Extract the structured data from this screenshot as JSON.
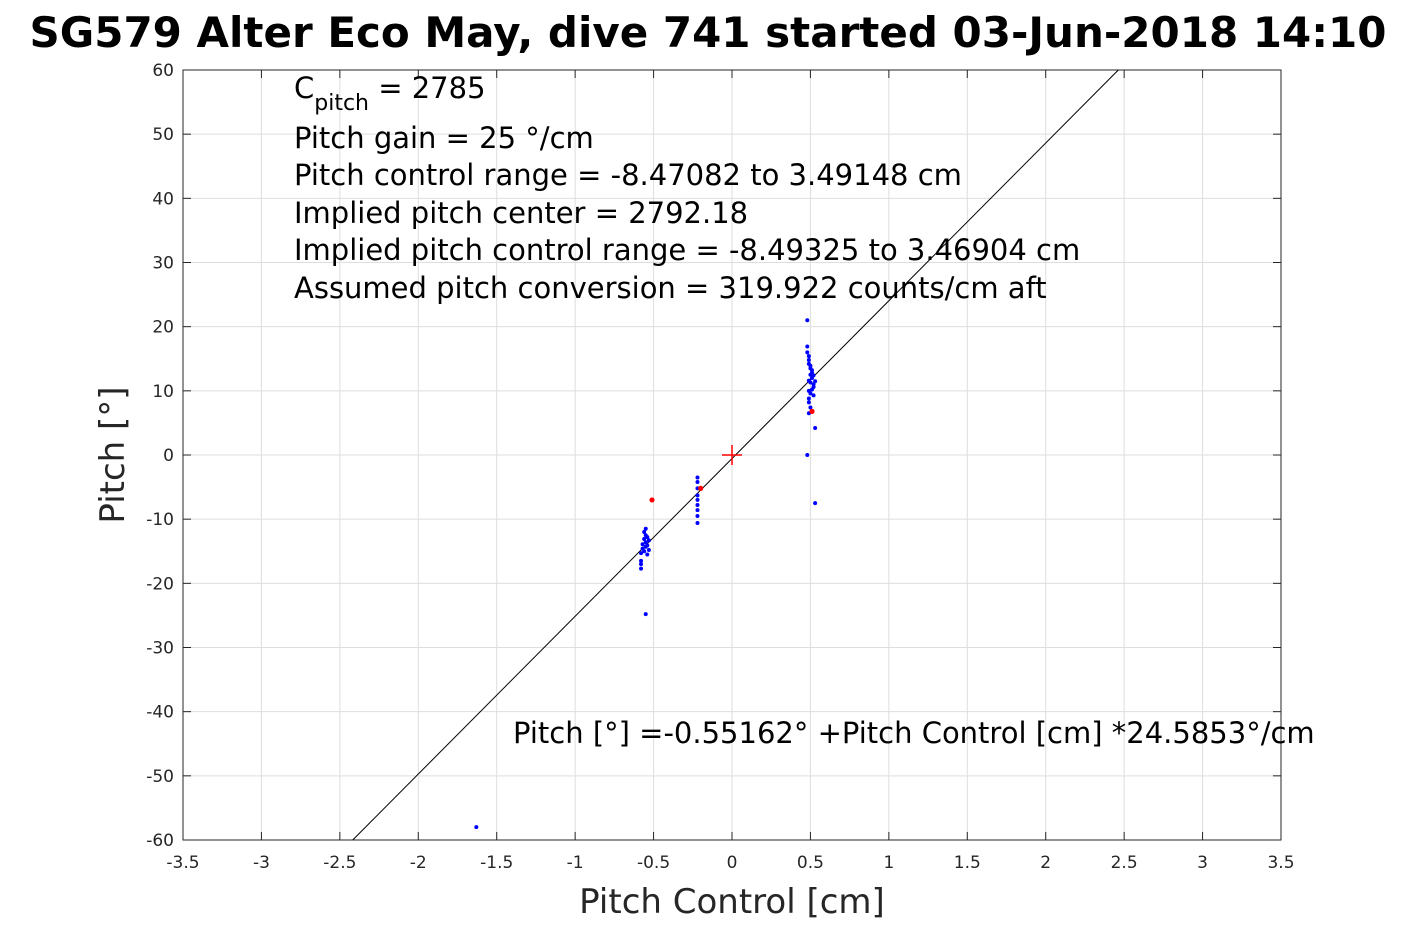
{
  "chart_data": {
    "type": "scatter",
    "title": "SG579 Alter Eco May, dive 741 started 03-Jun-2018 14:10",
    "xlabel": "Pitch Control [cm]",
    "ylabel": "Pitch [°]",
    "xlim": [
      -3.5,
      3.5
    ],
    "ylim": [
      -60,
      60
    ],
    "xticks": [
      -3.5,
      -3,
      -2.5,
      -2,
      -1.5,
      -1,
      -0.5,
      0,
      0.5,
      1,
      1.5,
      2,
      2.5,
      3,
      3.5
    ],
    "xtick_labels": [
      "-3.5",
      "-3",
      "-2.5",
      "-2",
      "-1.5",
      "-1",
      "-0.5",
      "0",
      "0.5",
      "1",
      "1.5",
      "2",
      "2.5",
      "3",
      "3.5"
    ],
    "yticks": [
      60,
      50,
      40,
      30,
      20,
      10,
      0,
      -10,
      -20,
      -30,
      -40,
      -50,
      -60
    ],
    "ytick_labels": [
      "60",
      "50",
      "40",
      "30",
      "20",
      "10",
      "0",
      "-10",
      "-20",
      "-30",
      "-40",
      "-50",
      "-60"
    ],
    "grid": true,
    "colors": {
      "points": "#0000ff",
      "outliers": "#ff0000",
      "fit": "#000000",
      "center": "#ff0000"
    },
    "fit_line": {
      "intercept": -0.55162,
      "slope": 24.5853
    },
    "center_marker": {
      "x": 0,
      "y": 0
    },
    "annotations": {
      "c_pitch_sym": "C",
      "c_pitch_sub": "pitch",
      "c_pitch_rest": " = 2785",
      "gain": "Pitch gain = 25 °/cm",
      "range": "Pitch control range = -8.47082 to 3.49148 cm",
      "center": "Implied pitch center = 2792.18",
      "implied_range": "Implied pitch control range = -8.49325 to 3.46904 cm",
      "conversion": "Assumed pitch conversion = 319.922 counts/cm aft",
      "fit_equation": "Pitch [°] =-0.55162° +Pitch Control [cm] *24.5853°/cm"
    },
    "series": [
      {
        "values": [
          [
            0.48,
            21.0
          ],
          [
            0.48,
            16.9
          ],
          [
            0.48,
            16.0
          ],
          [
            0.49,
            15.4
          ],
          [
            0.49,
            14.8
          ],
          [
            0.49,
            14.2
          ],
          [
            0.5,
            13.9
          ],
          [
            0.5,
            13.5
          ],
          [
            0.51,
            13.2
          ],
          [
            0.51,
            12.8
          ],
          [
            0.5,
            12.5
          ],
          [
            0.52,
            12.4
          ],
          [
            0.51,
            12.0
          ],
          [
            0.49,
            11.6
          ],
          [
            0.5,
            11.3
          ],
          [
            0.52,
            11.0
          ],
          [
            0.53,
            11.5
          ],
          [
            0.52,
            10.6
          ],
          [
            0.51,
            10.2
          ],
          [
            0.49,
            10.0
          ],
          [
            0.5,
            9.6
          ],
          [
            0.52,
            9.3
          ],
          [
            0.49,
            8.8
          ],
          [
            0.49,
            8.2
          ],
          [
            0.5,
            7.4
          ],
          [
            0.49,
            6.5
          ],
          [
            0.53,
            4.2
          ],
          [
            0.48,
            0.0
          ],
          [
            0.53,
            -7.5
          ],
          [
            -0.22,
            -3.5
          ],
          [
            -0.22,
            -4.2
          ],
          [
            -0.22,
            -5.2
          ],
          [
            -0.22,
            -6.3
          ],
          [
            -0.22,
            -7.0
          ],
          [
            -0.22,
            -7.8
          ],
          [
            -0.22,
            -8.6
          ],
          [
            -0.22,
            -9.5
          ],
          [
            -0.22,
            -10.6
          ],
          [
            -0.55,
            -11.5
          ],
          [
            -0.56,
            -12.0
          ],
          [
            -0.55,
            -12.5
          ],
          [
            -0.54,
            -12.8
          ],
          [
            -0.56,
            -13.1
          ],
          [
            -0.53,
            -13.3
          ],
          [
            -0.55,
            -13.6
          ],
          [
            -0.57,
            -13.9
          ],
          [
            -0.54,
            -14.1
          ],
          [
            -0.55,
            -14.3
          ],
          [
            -0.57,
            -14.6
          ],
          [
            -0.53,
            -14.8
          ],
          [
            -0.56,
            -15.0
          ],
          [
            -0.58,
            -15.3
          ],
          [
            -0.54,
            -15.5
          ],
          [
            -0.58,
            -16.5
          ],
          [
            -0.58,
            -17.0
          ],
          [
            -0.58,
            -17.7
          ],
          [
            -0.55,
            -24.8
          ],
          [
            -1.63,
            -58.0
          ]
        ]
      },
      {
        "values": [
          [
            -0.51,
            -7.0
          ],
          [
            -0.2,
            -5.2
          ],
          [
            0.51,
            6.8
          ]
        ]
      }
    ]
  }
}
